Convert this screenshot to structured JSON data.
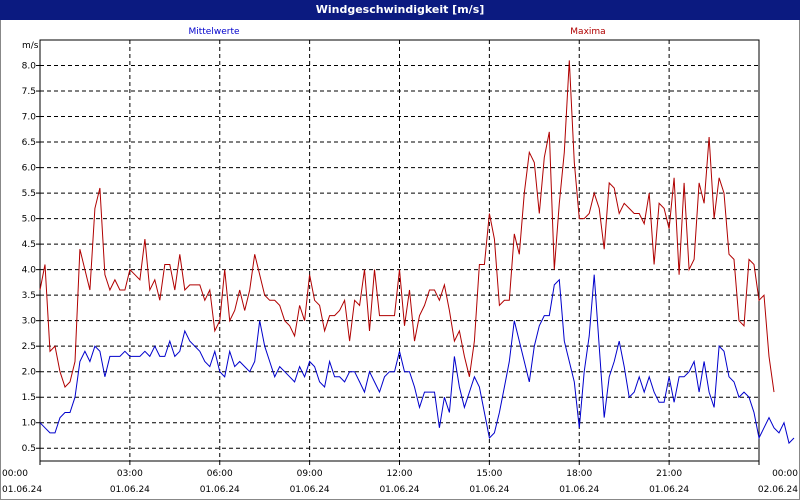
{
  "window": {
    "title": "Windgeschwindigkeit [m/s]"
  },
  "chart_data": {
    "type": "line",
    "title": "Windgeschwindigkeit [m/s]",
    "unit_label": "m/s",
    "ylim": [
      0.25,
      8.5
    ],
    "y_ticks": [
      "0.5",
      "1.0",
      "1.5",
      "2.0",
      "2.5",
      "3.0",
      "3.5",
      "4.0",
      "4.5",
      "5.0",
      "5.5",
      "6.0",
      "6.5",
      "7.0",
      "7.5",
      "8.0"
    ],
    "x_range_hours": [
      0,
      24
    ],
    "x_ticks": [
      {
        "time": "00:00",
        "date": "01.06.24"
      },
      {
        "time": "03:00",
        "date": "01.06.24"
      },
      {
        "time": "06:00",
        "date": "01.06.24"
      },
      {
        "time": "09:00",
        "date": "01.06.24"
      },
      {
        "time": "12:00",
        "date": "01.06.24"
      },
      {
        "time": "15:00",
        "date": "01.06.24"
      },
      {
        "time": "18:00",
        "date": "01.06.24"
      },
      {
        "time": "21:00",
        "date": "01.06.24"
      },
      {
        "time": "00:00",
        "date": "02.06.24"
      }
    ],
    "grid": true,
    "legend_placement": "top",
    "sampling_interval_minutes": 10,
    "series": [
      {
        "name": "Mittelwerte",
        "color": "#0000cc",
        "values": [
          1.0,
          0.9,
          0.8,
          0.8,
          1.1,
          1.2,
          1.2,
          1.5,
          2.2,
          2.4,
          2.2,
          2.5,
          2.4,
          1.9,
          2.3,
          2.3,
          2.3,
          2.4,
          2.3,
          2.3,
          2.3,
          2.4,
          2.3,
          2.5,
          2.3,
          2.3,
          2.6,
          2.3,
          2.4,
          2.8,
          2.6,
          2.5,
          2.4,
          2.2,
          2.1,
          2.4,
          2.0,
          1.9,
          2.4,
          2.1,
          2.2,
          2.1,
          2.0,
          2.2,
          3.0,
          2.5,
          2.2,
          1.9,
          2.1,
          2.0,
          1.9,
          1.8,
          2.1,
          1.9,
          2.2,
          2.1,
          1.8,
          1.7,
          2.2,
          1.9,
          1.9,
          1.8,
          2.0,
          2.0,
          1.8,
          1.6,
          2.0,
          1.8,
          1.6,
          1.9,
          2.0,
          2.0,
          2.4,
          2.0,
          2.0,
          1.7,
          1.3,
          1.6,
          1.6,
          1.6,
          0.9,
          1.5,
          1.2,
          2.3,
          1.7,
          1.3,
          1.6,
          1.9,
          1.7,
          1.2,
          0.7,
          0.8,
          1.2,
          1.7,
          2.2,
          3.0,
          2.6,
          2.2,
          1.8,
          2.5,
          2.9,
          3.1,
          3.1,
          3.7,
          3.8,
          2.6,
          2.2,
          1.8,
          0.9,
          2.0,
          2.7,
          3.9,
          2.5,
          1.1,
          1.9,
          2.2,
          2.6,
          2.1,
          1.5,
          1.6,
          1.9,
          1.6,
          1.9,
          1.6,
          1.4,
          1.4,
          1.9,
          1.4,
          1.9,
          1.9,
          2.0,
          2.2,
          1.6,
          2.2,
          1.6,
          1.3,
          2.5,
          2.4,
          1.9,
          1.8,
          1.5,
          1.6,
          1.5,
          1.2,
          0.7,
          0.9,
          1.1,
          0.9,
          0.8,
          1.0,
          0.6,
          0.7
        ]
      },
      {
        "name": "Maxima",
        "color": "#b00000",
        "values": [
          3.6,
          4.1,
          2.4,
          2.5,
          2.0,
          1.7,
          1.8,
          2.2,
          4.4,
          4.0,
          3.6,
          5.2,
          5.6,
          3.9,
          3.6,
          3.8,
          3.6,
          3.6,
          4.0,
          3.9,
          3.8,
          4.6,
          3.6,
          3.8,
          3.4,
          4.1,
          4.1,
          3.6,
          4.3,
          3.6,
          3.7,
          3.7,
          3.7,
          3.4,
          3.6,
          2.8,
          3.0,
          4.0,
          3.0,
          3.2,
          3.6,
          3.2,
          3.6,
          4.3,
          3.9,
          3.5,
          3.4,
          3.4,
          3.3,
          3.0,
          2.9,
          2.7,
          3.3,
          3.0,
          3.9,
          3.4,
          3.3,
          2.8,
          3.1,
          3.1,
          3.2,
          3.4,
          2.6,
          3.4,
          3.3,
          4.0,
          2.8,
          4.0,
          3.1,
          3.1,
          3.1,
          3.1,
          4.0,
          2.9,
          3.6,
          2.6,
          3.1,
          3.3,
          3.6,
          3.6,
          3.4,
          3.7,
          3.2,
          2.6,
          2.8,
          2.3,
          1.9,
          2.6,
          4.1,
          4.1,
          5.1,
          4.6,
          3.3,
          3.4,
          3.4,
          4.7,
          4.3,
          5.5,
          6.3,
          6.1,
          5.1,
          6.2,
          6.7,
          4.0,
          5.3,
          6.3,
          8.1,
          6.1,
          5.0,
          5.0,
          5.1,
          5.5,
          5.2,
          4.4,
          5.7,
          5.6,
          5.1,
          5.3,
          5.2,
          5.1,
          5.1,
          4.9,
          5.5,
          4.1,
          5.3,
          5.2,
          4.8,
          5.8,
          3.9,
          5.7,
          4.0,
          4.2,
          5.7,
          5.3,
          6.6,
          5.0,
          5.8,
          5.5,
          4.3,
          4.2,
          3.0,
          2.9,
          4.2,
          4.1,
          3.4,
          3.5,
          2.3,
          1.6
        ]
      }
    ]
  }
}
